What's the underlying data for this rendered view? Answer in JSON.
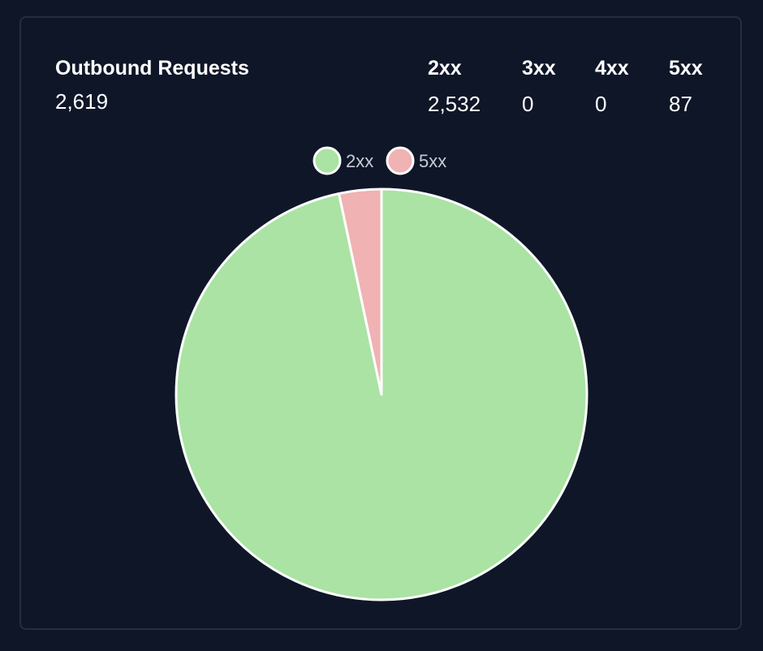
{
  "header": {
    "title": "Outbound Requests",
    "total": "2,619",
    "stats": [
      {
        "label": "2xx",
        "value": "2,532"
      },
      {
        "label": "3xx",
        "value": "0"
      },
      {
        "label": "4xx",
        "value": "0"
      },
      {
        "label": "5xx",
        "value": "87"
      }
    ]
  },
  "chart_data": {
    "type": "pie",
    "title": "",
    "legend_position": "top-center",
    "slices": [
      {
        "label": "2xx",
        "value": 2532,
        "color": "#aae3a4"
      },
      {
        "label": "5xx",
        "value": 87,
        "color": "#f0b2b2"
      }
    ],
    "start_angle_deg": 0,
    "direction": "clockwise",
    "slice_border_color": "#ffffff"
  }
}
